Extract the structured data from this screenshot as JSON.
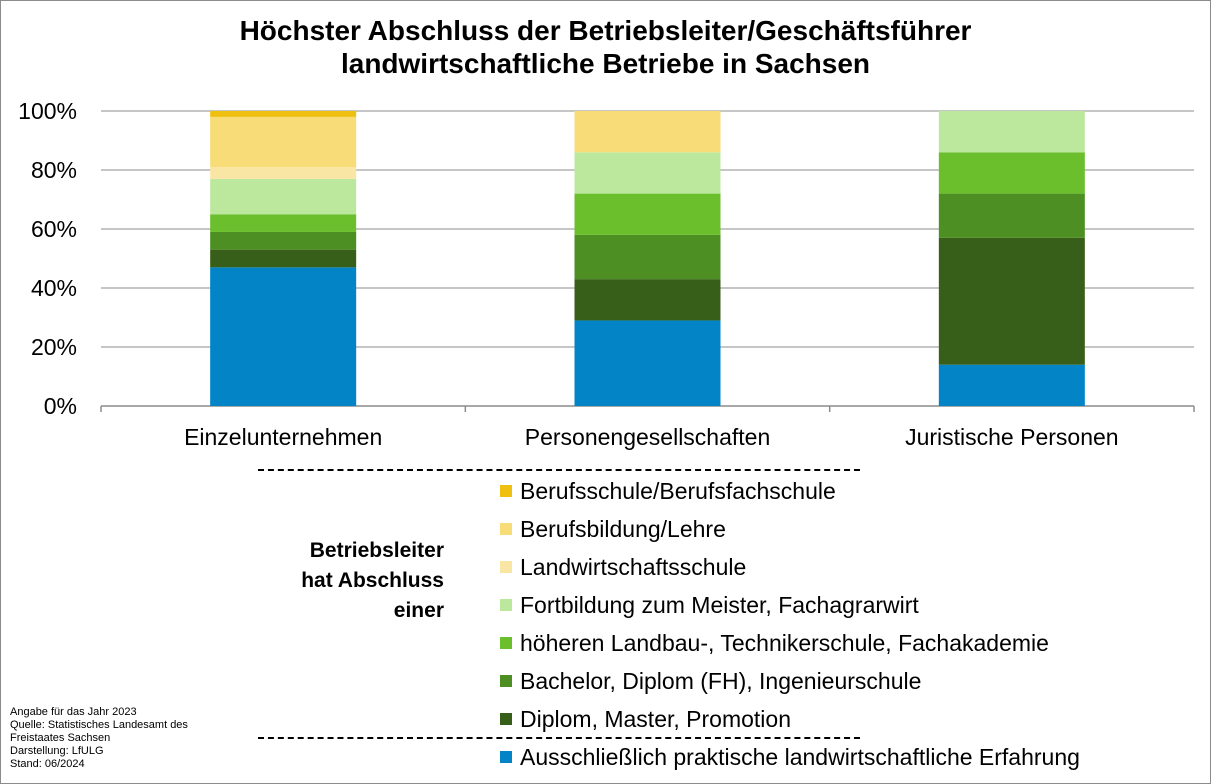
{
  "chart_data": {
    "type": "bar",
    "stacked": true,
    "title_lines": [
      "Höchster Abschluss der Betriebsleiter/Geschäftsführer",
      "landwirtschaftliche Betriebe in Sachsen"
    ],
    "categories": [
      "Einzelunternehmen",
      "Personengesellschaften",
      "Juristische Personen"
    ],
    "ylim": [
      0,
      100
    ],
    "yticks": [
      "0%",
      "20%",
      "40%",
      "60%",
      "80%",
      "100%"
    ],
    "grid": true,
    "legend_title_lines": [
      "Betriebsleiter",
      "hat Abschluss",
      "einer"
    ],
    "series": [
      {
        "name": "Ausschließlich praktische landwirtschaftliche Erfahrung",
        "color": "#0284c7",
        "values": [
          47,
          29,
          14
        ]
      },
      {
        "name": "Diplom, Master, Promotion",
        "color": "#375f1a",
        "values": [
          6,
          14,
          43
        ]
      },
      {
        "name": "Bachelor, Diplom (FH), Ingenieurschule",
        "color": "#4d8f23",
        "values": [
          6,
          15,
          15
        ]
      },
      {
        "name": "höheren Landbau-, Technikerschule, Fachakademie",
        "color": "#6bbf2d",
        "values": [
          6,
          14,
          14
        ]
      },
      {
        "name": "Fortbildung zum Meister, Fachagrarwirt",
        "color": "#bce89e",
        "values": [
          12,
          14,
          14
        ]
      },
      {
        "name": "Landwirtschaftsschule",
        "color": "#fae6a4",
        "values": [
          4,
          0,
          0
        ]
      },
      {
        "name": "Berufsbildung/Lehre",
        "color": "#f8dc78",
        "values": [
          17,
          14,
          0
        ]
      },
      {
        "name": "Berufsschule/Berufsfachschule",
        "color": "#efc010",
        "values": [
          2,
          0,
          0
        ]
      }
    ]
  },
  "footnote": [
    "Angabe für das Jahr 2023",
    "Quelle: Statistisches Landesamt des",
    "Freistaates Sachsen",
    "Darstellung: LfULG",
    "Stand: 06/2024"
  ]
}
